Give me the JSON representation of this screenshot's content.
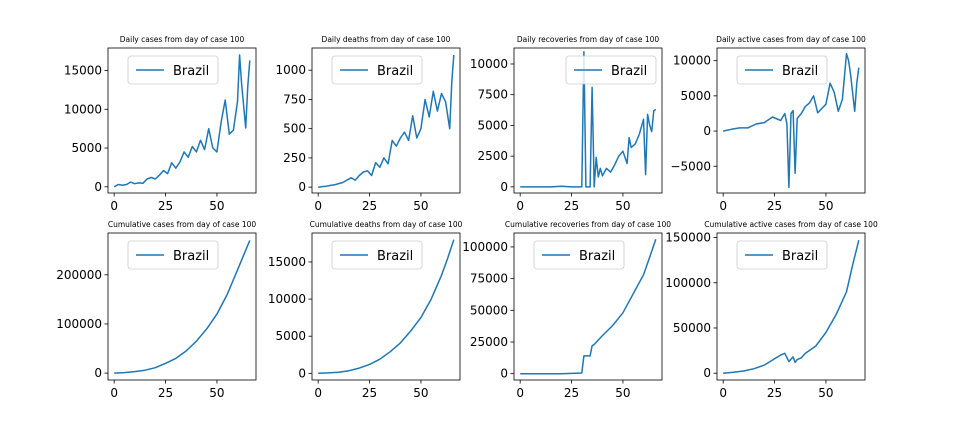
{
  "chart_data": [
    {
      "type": "line",
      "title": "Daily cases from day of case 100",
      "xlim": [
        -3,
        69
      ],
      "ylim": [
        -800,
        17900
      ],
      "xticks": [
        0,
        25,
        50
      ],
      "yticks": [
        0,
        5000,
        10000,
        15000
      ],
      "series": [
        {
          "name": "Brazil",
          "x": [
            0,
            2,
            4,
            6,
            8,
            10,
            12,
            14,
            16,
            18,
            20,
            22,
            24,
            26,
            28,
            30,
            32,
            34,
            36,
            38,
            40,
            42,
            44,
            46,
            48,
            50,
            52,
            54,
            56,
            58,
            60,
            61,
            62,
            64,
            65,
            66
          ],
          "y": [
            0,
            300,
            200,
            300,
            600,
            400,
            500,
            450,
            1000,
            1200,
            1000,
            1500,
            2100,
            1700,
            3100,
            2400,
            3200,
            4500,
            3800,
            5200,
            4500,
            6000,
            4800,
            7500,
            5000,
            4500,
            8300,
            11200,
            6800,
            7300,
            11000,
            17000,
            13300,
            7600,
            13000,
            16300
          ]
        }
      ]
    },
    {
      "type": "line",
      "title": "Daily deaths from day of case 100",
      "xlim": [
        -3,
        69
      ],
      "ylim": [
        -50,
        1190
      ],
      "xticks": [
        0,
        25,
        50
      ],
      "yticks": [
        0,
        250,
        500,
        750,
        1000
      ],
      "series": [
        {
          "name": "Brazil",
          "x": [
            0,
            2,
            4,
            6,
            8,
            10,
            12,
            14,
            16,
            18,
            20,
            22,
            24,
            26,
            28,
            30,
            32,
            34,
            36,
            38,
            40,
            42,
            44,
            46,
            48,
            50,
            52,
            54,
            56,
            58,
            60,
            62,
            64,
            65,
            66
          ],
          "y": [
            0,
            5,
            8,
            15,
            20,
            30,
            40,
            60,
            80,
            60,
            100,
            130,
            140,
            100,
            210,
            170,
            250,
            200,
            400,
            350,
            420,
            470,
            400,
            610,
            420,
            500,
            750,
            600,
            820,
            650,
            800,
            730,
            500,
            900,
            1130
          ]
        }
      ]
    },
    {
      "type": "line",
      "title": "Daily recoveries from day of case 100",
      "xlim": [
        -3,
        69
      ],
      "ylim": [
        -500,
        11300
      ],
      "xticks": [
        0,
        25,
        50
      ],
      "yticks": [
        0,
        2500,
        5000,
        7500,
        10000
      ],
      "series": [
        {
          "name": "Brazil",
          "x": [
            0,
            5,
            10,
            15,
            20,
            25,
            28,
            30,
            31,
            32,
            33,
            34,
            35,
            36,
            37,
            38,
            39,
            40,
            42,
            44,
            46,
            48,
            50,
            52,
            53,
            54,
            56,
            58,
            60,
            61,
            62,
            63,
            64,
            65,
            66
          ],
          "y": [
            0,
            0,
            0,
            0,
            50,
            0,
            0,
            0,
            11000,
            0,
            0,
            0,
            8100,
            0,
            2400,
            800,
            1500,
            900,
            1500,
            1200,
            1800,
            2500,
            2900,
            1900,
            4000,
            3200,
            3500,
            4300,
            5500,
            1000,
            5900,
            5000,
            4500,
            6200,
            6300
          ]
        }
      ]
    },
    {
      "type": "line",
      "title": "Daily active cases from day of case 100",
      "xlim": [
        -3,
        69
      ],
      "ylim": [
        -8800,
        11800
      ],
      "xticks": [
        0,
        25,
        50
      ],
      "yticks": [
        -5000,
        0,
        5000,
        10000
      ],
      "series": [
        {
          "name": "Brazil",
          "x": [
            0,
            4,
            8,
            12,
            16,
            20,
            24,
            28,
            30,
            31,
            32,
            33,
            34,
            35,
            36,
            38,
            40,
            42,
            44,
            46,
            48,
            50,
            52,
            54,
            56,
            58,
            60,
            61,
            62,
            64,
            65,
            66
          ],
          "y": [
            0,
            250,
            450,
            450,
            1000,
            1200,
            2000,
            1500,
            2500,
            1000,
            -8000,
            2500,
            2900,
            -6000,
            1800,
            2500,
            3500,
            4000,
            5000,
            2600,
            3200,
            3800,
            6800,
            5500,
            2800,
            4500,
            11000,
            10000,
            8000,
            2800,
            6800,
            9000
          ]
        }
      ]
    },
    {
      "type": "line",
      "title": "Cumulative cases from day of case 100",
      "xlim": [
        -3,
        69
      ],
      "ylim": [
        -14000,
        285000
      ],
      "xticks": [
        0,
        25,
        50
      ],
      "yticks": [
        0,
        100000,
        200000
      ],
      "series": [
        {
          "name": "Brazil",
          "x": [
            0,
            5,
            10,
            15,
            20,
            25,
            30,
            35,
            40,
            45,
            50,
            55,
            60,
            63,
            66
          ],
          "y": [
            0,
            1000,
            3000,
            6000,
            11000,
            20000,
            30000,
            45000,
            65000,
            90000,
            120000,
            160000,
            210000,
            240000,
            270000
          ]
        }
      ]
    },
    {
      "type": "line",
      "title": "Cumulative deaths from day of case 100",
      "xlim": [
        -3,
        69
      ],
      "ylim": [
        -900,
        18900
      ],
      "xticks": [
        0,
        25,
        50
      ],
      "yticks": [
        0,
        5000,
        10000,
        15000
      ],
      "series": [
        {
          "name": "Brazil",
          "x": [
            0,
            5,
            10,
            15,
            20,
            25,
            30,
            35,
            40,
            45,
            50,
            55,
            60,
            63,
            66
          ],
          "y": [
            0,
            50,
            150,
            350,
            700,
            1200,
            1900,
            2900,
            4100,
            5700,
            7500,
            10000,
            13200,
            15500,
            18000
          ]
        }
      ]
    },
    {
      "type": "line",
      "title": "Cumulative recoveries from day of case 100",
      "xlim": [
        -3,
        69
      ],
      "ylim": [
        -5000,
        111000
      ],
      "xticks": [
        0,
        25,
        50
      ],
      "yticks": [
        0,
        25000,
        50000,
        75000,
        100000
      ],
      "series": [
        {
          "name": "Brazil",
          "x": [
            0,
            5,
            10,
            15,
            20,
            25,
            30,
            31,
            34,
            35,
            36,
            40,
            45,
            50,
            55,
            60,
            63,
            66
          ],
          "y": [
            0,
            0,
            0,
            0,
            0,
            200,
            500,
            14000,
            14000,
            22000,
            23000,
            30000,
            38000,
            48000,
            63000,
            78000,
            92000,
            106000
          ]
        }
      ]
    },
    {
      "type": "line",
      "title": "Cumulative active cases from day of case 100",
      "xlim": [
        -3,
        69
      ],
      "ylim": [
        -7500,
        155000
      ],
      "xticks": [
        0,
        25,
        50
      ],
      "yticks": [
        0,
        50000,
        100000,
        150000
      ],
      "series": [
        {
          "name": "Brazil",
          "x": [
            0,
            5,
            10,
            15,
            20,
            25,
            28,
            30,
            32,
            34,
            35,
            36,
            38,
            40,
            45,
            50,
            55,
            60,
            63,
            66
          ],
          "y": [
            0,
            1000,
            2500,
            5000,
            9000,
            16000,
            20000,
            22000,
            13000,
            18000,
            12000,
            15000,
            17000,
            22000,
            30000,
            45000,
            65000,
            90000,
            120000,
            147000
          ]
        }
      ]
    }
  ]
}
